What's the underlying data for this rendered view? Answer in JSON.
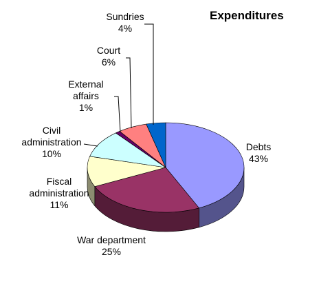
{
  "chart_data": {
    "type": "pie3d",
    "title": "Expenditures",
    "categories": [
      "Debts",
      "War department",
      "Fiscal administration",
      "Civil administration",
      "External affairs",
      "Court",
      "Sundries"
    ],
    "values": [
      43,
      25,
      11,
      10,
      1,
      6,
      4
    ],
    "value_labels": [
      "43%",
      "25%",
      "11%",
      "10%",
      "1%",
      "6%",
      "4%"
    ],
    "colors": [
      "#9999ff",
      "#993366",
      "#ffffcc",
      "#ccffff",
      "#660066",
      "#ff8080",
      "#0066cc"
    ]
  }
}
